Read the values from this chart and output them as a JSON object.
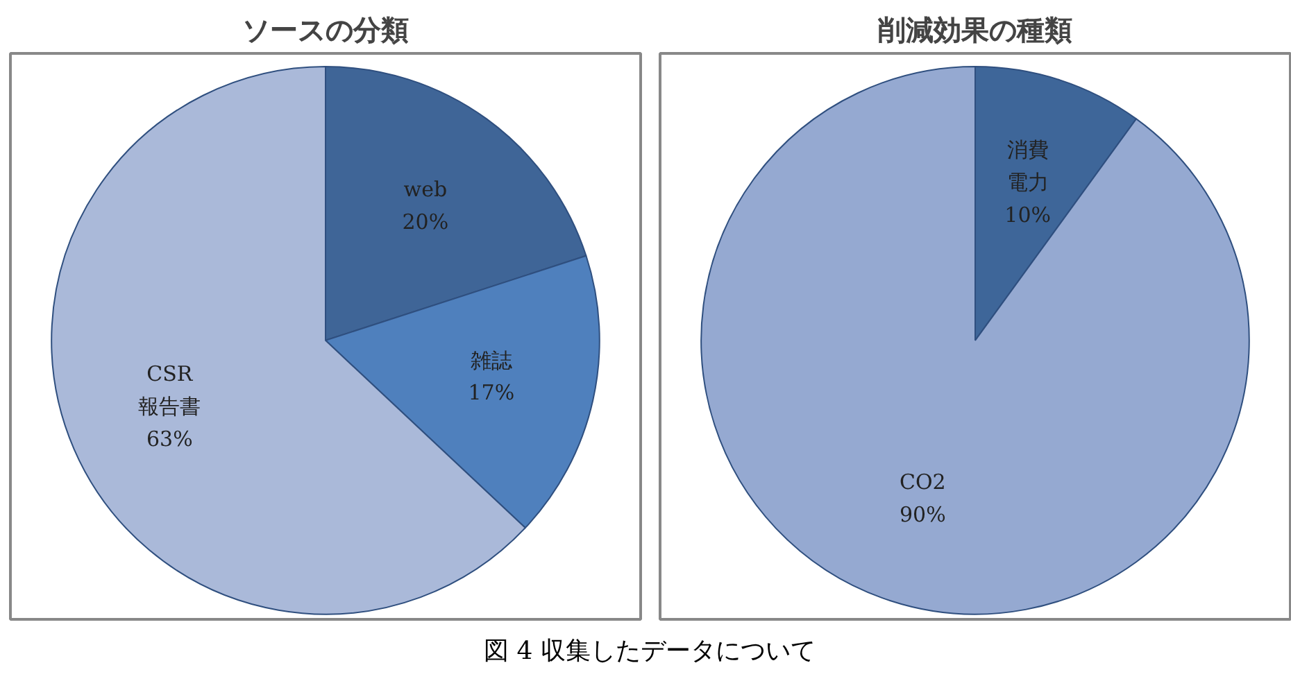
{
  "chart_data": [
    {
      "type": "pie",
      "title": "ソースの分類",
      "categories": [
        "web",
        "雑誌",
        "CSR報告書"
      ],
      "values": [
        20,
        17,
        63
      ],
      "value_labels": [
        "20%",
        "17%",
        "63%"
      ],
      "colors": [
        "#3f6597",
        "#4f80bd",
        "#aab9d9"
      ]
    },
    {
      "type": "pie",
      "title": "削減効果の種類",
      "categories": [
        "消費電力",
        "CO2"
      ],
      "values": [
        10,
        90
      ],
      "value_labels": [
        "10%",
        "90%"
      ],
      "colors": [
        "#3e6699",
        "#95a9d1"
      ],
      "annotations": [
        "図 4 収集したデータについて"
      ]
    }
  ]
}
